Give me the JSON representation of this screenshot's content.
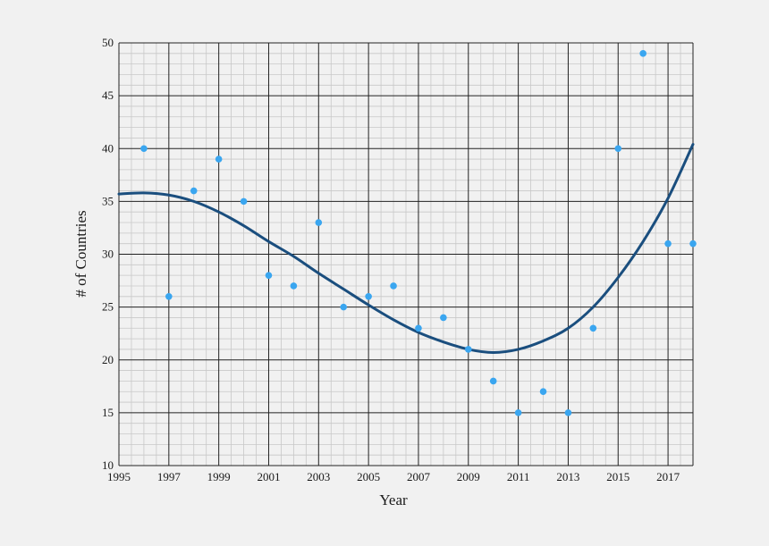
{
  "chart_data": {
    "type": "scatter",
    "xlabel": "Year",
    "ylabel": "# of Countries",
    "xlim": [
      1995,
      2018
    ],
    "ylim": [
      10,
      50
    ],
    "x_ticks": [
      "1995",
      "1997",
      "1999",
      "2001",
      "2003",
      "2005",
      "2007",
      "2009",
      "2011",
      "2013",
      "2015",
      "2017"
    ],
    "y_ticks": [
      "10",
      "15",
      "20",
      "25",
      "30",
      "35",
      "40",
      "45",
      "50"
    ],
    "grid": true,
    "colors": {
      "points": "#3aa6f0",
      "trend": "#1a4e7e",
      "background": "#f1f1f1"
    },
    "series": [
      {
        "values": [
          {
            "x": 1996,
            "y": 40
          },
          {
            "x": 1997,
            "y": 26
          },
          {
            "x": 1998,
            "y": 36
          },
          {
            "x": 1999,
            "y": 39
          },
          {
            "x": 2000,
            "y": 35
          },
          {
            "x": 2001,
            "y": 28
          },
          {
            "x": 2002,
            "y": 27
          },
          {
            "x": 2003,
            "y": 33
          },
          {
            "x": 2004,
            "y": 25
          },
          {
            "x": 2005,
            "y": 26
          },
          {
            "x": 2006,
            "y": 27
          },
          {
            "x": 2007,
            "y": 23
          },
          {
            "x": 2008,
            "y": 24
          },
          {
            "x": 2009,
            "y": 21
          },
          {
            "x": 2010,
            "y": 18
          },
          {
            "x": 2011,
            "y": 15
          },
          {
            "x": 2012,
            "y": 17
          },
          {
            "x": 2013,
            "y": 15
          },
          {
            "x": 2014,
            "y": 23
          },
          {
            "x": 2015,
            "y": 40
          },
          {
            "x": 2016,
            "y": 49
          },
          {
            "x": 2017,
            "y": 31
          },
          {
            "x": 2018,
            "y": 31
          }
        ]
      }
    ],
    "trendline": [
      {
        "x": 1995,
        "y": 35.7
      },
      {
        "x": 1996,
        "y": 35.8
      },
      {
        "x": 1997,
        "y": 35.6
      },
      {
        "x": 1998,
        "y": 35.0
      },
      {
        "x": 1999,
        "y": 34.0
      },
      {
        "x": 2000,
        "y": 32.7
      },
      {
        "x": 2001,
        "y": 31.2
      },
      {
        "x": 2002,
        "y": 29.8
      },
      {
        "x": 2003,
        "y": 28.2
      },
      {
        "x": 2004,
        "y": 26.7
      },
      {
        "x": 2005,
        "y": 25.2
      },
      {
        "x": 2006,
        "y": 23.8
      },
      {
        "x": 2007,
        "y": 22.6
      },
      {
        "x": 2008,
        "y": 21.7
      },
      {
        "x": 2009,
        "y": 21.0
      },
      {
        "x": 2010,
        "y": 20.7
      },
      {
        "x": 2011,
        "y": 21.0
      },
      {
        "x": 2012,
        "y": 21.8
      },
      {
        "x": 2013,
        "y": 23.0
      },
      {
        "x": 2014,
        "y": 25.0
      },
      {
        "x": 2015,
        "y": 27.8
      },
      {
        "x": 2016,
        "y": 31.2
      },
      {
        "x": 2017,
        "y": 35.3
      },
      {
        "x": 2018,
        "y": 40.4
      }
    ]
  }
}
